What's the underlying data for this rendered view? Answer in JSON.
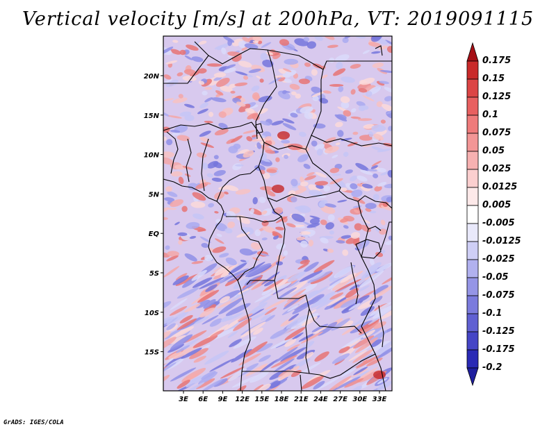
{
  "title": "Vertical velocity [m/s] at 200hPa, VT: 2019091115",
  "footer": "GrADS: IGES/COLA",
  "lat_labels": [
    "20N",
    "15N",
    "10N",
    "5N",
    "EQ",
    "5S",
    "10S",
    "15S"
  ],
  "lon_labels": [
    "3E",
    "6E",
    "9E",
    "12E",
    "15E",
    "18E",
    "21E",
    "24E",
    "27E",
    "30E",
    "33E"
  ],
  "colorbar": {
    "labels": [
      "0.175",
      "0.15",
      "0.125",
      "0.1",
      "0.075",
      "0.05",
      "0.025",
      "0.0125",
      "0.005",
      "-0.005",
      "-0.0125",
      "-0.025",
      "-0.05",
      "-0.075",
      "-0.1",
      "-0.125",
      "-0.175",
      "-0.2"
    ],
    "colors": [
      "#a50f15",
      "#c92a2a",
      "#dc4545",
      "#e86060",
      "#ef7b7b",
      "#f39696",
      "#f7b1b1",
      "#fbcfcf",
      "#fde9e9",
      "#ffffff",
      "#e9e9fb",
      "#cfcff6",
      "#b1b1ef",
      "#9595e6",
      "#7b7bdd",
      "#6060d2",
      "#4545c6",
      "#2a2ab5",
      "#1e1e9e"
    ]
  }
}
